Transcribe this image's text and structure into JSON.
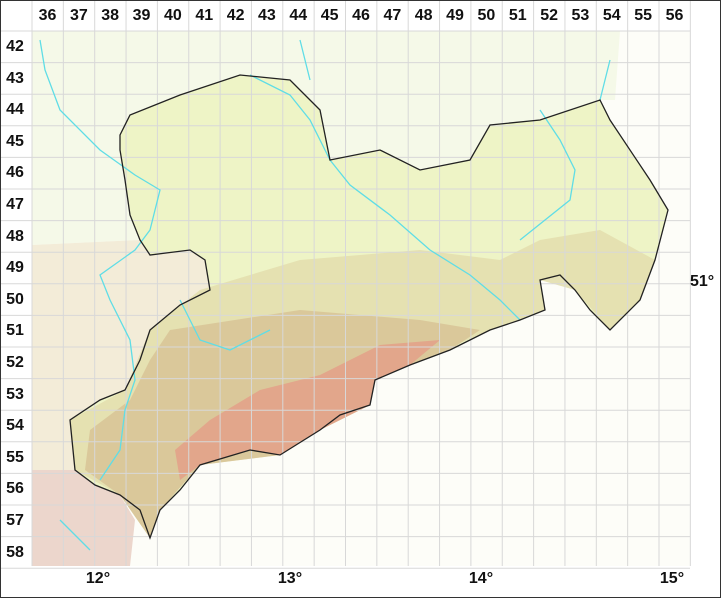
{
  "grid": {
    "columns": [
      "36",
      "37",
      "38",
      "39",
      "40",
      "41",
      "42",
      "43",
      "44",
      "45",
      "46",
      "47",
      "48",
      "49",
      "50",
      "51",
      "52",
      "53",
      "54",
      "55",
      "56"
    ],
    "rows": [
      "42",
      "43",
      "44",
      "45",
      "46",
      "47",
      "48",
      "49",
      "50",
      "51",
      "52",
      "53",
      "54",
      "55",
      "56",
      "57",
      "58"
    ]
  },
  "longitude_labels": [
    "12°",
    "13°",
    "14°",
    "15°"
  ],
  "latitude_labels": [
    "51°"
  ],
  "colors": {
    "outside": "#f5f9e8",
    "lowland": "#eef4c6",
    "hills": "#e3dfae",
    "uplands": "#d8c598",
    "mountains": "#e3a088",
    "rivers": "#5fdde6",
    "border": "#222222",
    "grid": "#d8d8d8"
  }
}
